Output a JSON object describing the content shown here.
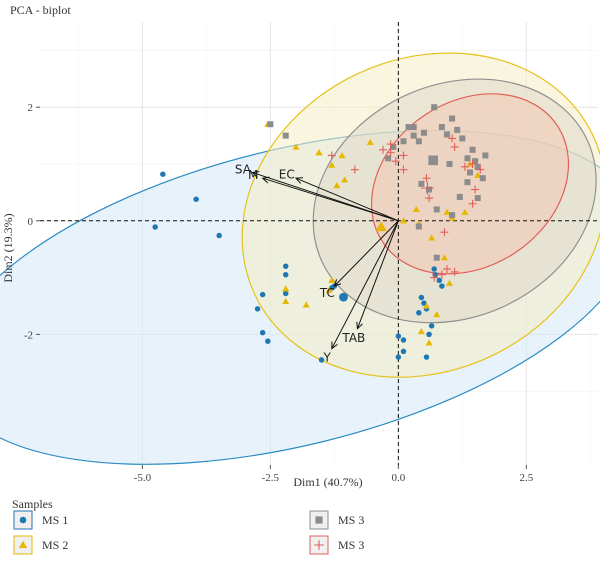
{
  "chart_data": {
    "type": "scatter",
    "title": "PCA - biplot",
    "xlabel": "Dim1 (40.7%)",
    "ylabel": "Dim2 (19.3%)",
    "xlim": [
      -7.0,
      3.9
    ],
    "ylim": [
      -4.3,
      3.5
    ],
    "xticks": [
      -5.0,
      -2.5,
      0.0,
      2.5
    ],
    "xtick_labels": [
      "-5.0",
      "-2.5",
      "0.0",
      "2.5"
    ],
    "yticks": [
      -2,
      0,
      2
    ],
    "ytick_labels": [
      "-2",
      "0",
      "2"
    ],
    "grid": true,
    "reference_lines": {
      "x": 0,
      "y": 0,
      "style": "dashed"
    },
    "legend": {
      "title": "Samples",
      "placement": "bottom",
      "entries": [
        {
          "label": "MS 1",
          "marker": "circle",
          "color": "#1f78b4"
        },
        {
          "label": "MS 2",
          "marker": "triangle",
          "color": "#e6b800"
        },
        {
          "label": "MS 3",
          "marker": "square",
          "color": "#8c8c8c"
        },
        {
          "label": "MS 3",
          "marker": "plus",
          "color": "#e0605a"
        }
      ]
    },
    "ellipses": [
      {
        "group": 1,
        "color": "#2b8cc4",
        "fill": "#d6e8f5",
        "center": [
          -2.1,
          -1.35
        ],
        "rx": 6.9,
        "ry": 2.6,
        "angle": -14
      },
      {
        "group": 2,
        "color": "#e6c21a",
        "fill": "#f4ecc4",
        "center": [
          0.5,
          0.1
        ],
        "rx": 3.65,
        "ry": 2.75,
        "angle": -25
      },
      {
        "group": 3,
        "color": "#909090",
        "fill": "#e0d9c8",
        "center": [
          1.1,
          0.35
        ],
        "rx": 2.85,
        "ry": 2.05,
        "angle": -24
      },
      {
        "group": 4,
        "color": "#e0605a",
        "fill": "#f2c9b4",
        "center": [
          1.4,
          0.65
        ],
        "rx": 2.05,
        "ry": 1.45,
        "angle": -34
      }
    ],
    "series": [
      {
        "name": "MS 1",
        "marker": "circle",
        "color": "#1f78b4",
        "points": [
          [
            -4.6,
            0.82
          ],
          [
            -3.95,
            0.38
          ],
          [
            -4.75,
            -0.11
          ],
          [
            -3.5,
            -0.26
          ],
          [
            -2.2,
            -0.8
          ],
          [
            -2.2,
            -0.95
          ],
          [
            -2.65,
            -1.3
          ],
          [
            -2.2,
            -1.28
          ],
          [
            -2.75,
            -1.55
          ],
          [
            -2.65,
            -1.97
          ],
          [
            -2.55,
            -2.12
          ],
          [
            -1.3,
            -1.18
          ],
          [
            -1.25,
            -1.15
          ],
          [
            -1.5,
            -2.45
          ],
          [
            0.0,
            -2.03
          ],
          [
            0.1,
            -2.1
          ],
          [
            0.1,
            -2.3
          ],
          [
            0.45,
            -1.35
          ],
          [
            0.5,
            -1.45
          ],
          [
            0.55,
            -1.55
          ],
          [
            0.4,
            -1.62
          ],
          [
            0.65,
            -1.85
          ],
          [
            0.6,
            -2.0
          ],
          [
            0.7,
            -0.85
          ],
          [
            0.72,
            -0.95
          ],
          [
            0.8,
            -1.05
          ],
          [
            0.85,
            -1.15
          ],
          [
            0.0,
            -2.4
          ],
          [
            0.55,
            -2.4
          ]
        ]
      },
      {
        "name": "MS 2",
        "marker": "triangle",
        "color": "#e6b800",
        "points": [
          [
            -2.55,
            1.7
          ],
          [
            -2.0,
            1.3
          ],
          [
            -1.55,
            1.2
          ],
          [
            -1.3,
            0.98
          ],
          [
            -0.55,
            1.38
          ],
          [
            -1.1,
            1.15
          ],
          [
            -1.55,
            1.2
          ],
          [
            -2.2,
            -1.2
          ],
          [
            -2.2,
            -1.42
          ],
          [
            -1.8,
            -1.48
          ],
          [
            -1.35,
            -1.22
          ],
          [
            -1.3,
            -1.05
          ],
          [
            0.35,
            0.2
          ],
          [
            0.4,
            -0.05
          ],
          [
            0.95,
            0.15
          ],
          [
            1.05,
            0.05
          ],
          [
            1.3,
            0.15
          ],
          [
            1.4,
            1.0
          ],
          [
            1.55,
            0.8
          ],
          [
            0.65,
            -0.3
          ],
          [
            0.9,
            -0.65
          ],
          [
            1.0,
            -1.1
          ],
          [
            0.55,
            -1.5
          ],
          [
            0.6,
            -2.15
          ],
          [
            0.45,
            -1.95
          ],
          [
            0.75,
            -1.65
          ],
          [
            0.1,
            0.0
          ],
          [
            -1.2,
            0.62
          ],
          [
            -1.05,
            0.72
          ]
        ]
      },
      {
        "name": "MS 3",
        "marker": "square",
        "color": "#8c8c8c",
        "points": [
          [
            -2.5,
            1.7
          ],
          [
            -2.2,
            1.5
          ],
          [
            0.1,
            1.4
          ],
          [
            -0.1,
            1.3
          ],
          [
            0.3,
            1.5
          ],
          [
            -0.2,
            1.1
          ],
          [
            0.4,
            1.4
          ],
          [
            0.3,
            1.65
          ],
          [
            0.5,
            1.55
          ],
          [
            0.85,
            1.65
          ],
          [
            0.95,
            1.52
          ],
          [
            1.05,
            1.8
          ],
          [
            1.15,
            1.6
          ],
          [
            1.25,
            1.45
          ],
          [
            1.45,
            1.25
          ],
          [
            1.5,
            1.05
          ],
          [
            1.55,
            0.95
          ],
          [
            1.65,
            0.75
          ],
          [
            1.4,
            0.85
          ],
          [
            1.35,
            0.68
          ],
          [
            1.2,
            0.42
          ],
          [
            0.75,
            0.2
          ],
          [
            1.05,
            0.1
          ],
          [
            1.55,
            0.4
          ],
          [
            0.45,
            0.65
          ],
          [
            0.6,
            0.55
          ],
          [
            0.4,
            -0.1
          ],
          [
            0.75,
            -0.65
          ],
          [
            0.2,
            1.65
          ],
          [
            0.7,
            2.0
          ],
          [
            1.7,
            1.15
          ],
          [
            1.35,
            1.1
          ],
          [
            1.0,
            1.0
          ]
        ]
      },
      {
        "name": "MS 3",
        "marker": "plus",
        "color": "#e0605a",
        "points": [
          [
            -0.3,
            1.25
          ],
          [
            -0.15,
            1.2
          ],
          [
            -0.05,
            1.05
          ],
          [
            0.1,
            1.15
          ],
          [
            -0.15,
            1.35
          ],
          [
            0.1,
            0.9
          ],
          [
            0.6,
            0.4
          ],
          [
            0.55,
            0.75
          ],
          [
            1.05,
            1.45
          ],
          [
            1.1,
            1.3
          ],
          [
            1.3,
            0.95
          ],
          [
            1.45,
            1.0
          ],
          [
            1.6,
            0.9
          ],
          [
            1.5,
            0.55
          ],
          [
            1.45,
            0.3
          ],
          [
            1.1,
            -0.9
          ],
          [
            0.85,
            -0.95
          ],
          [
            0.95,
            -0.85
          ],
          [
            0.7,
            -1.0
          ],
          [
            0.9,
            -0.2
          ],
          [
            -0.85,
            0.9
          ],
          [
            -1.3,
            1.15
          ]
        ]
      }
    ],
    "variables": [
      {
        "name": "SA",
        "x": -2.85,
        "y": 0.85
      },
      {
        "name": "EC",
        "x": -2.0,
        "y": 0.75
      },
      {
        "name": "M",
        "x": -2.65,
        "y": 0.75
      },
      {
        "name": "TC",
        "x": -1.25,
        "y": -1.15
      },
      {
        "name": "TAB",
        "x": -0.8,
        "y": -1.9
      },
      {
        "name": "Y",
        "x": -1.3,
        "y": -2.25
      }
    ]
  }
}
